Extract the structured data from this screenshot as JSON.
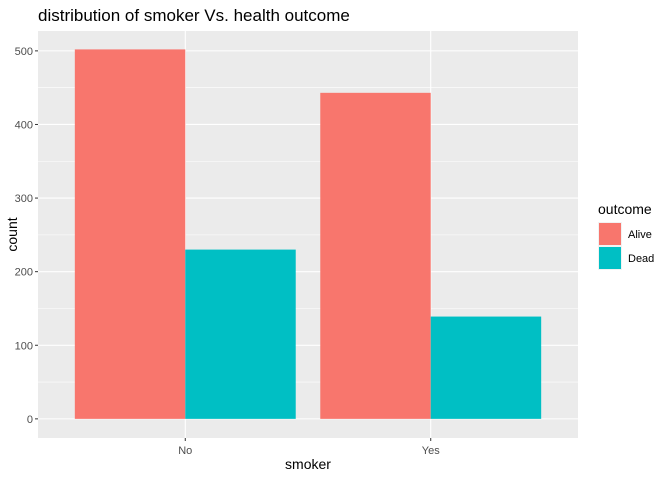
{
  "chart_data": {
    "type": "bar",
    "title": "distribution of smoker Vs. health outcome",
    "xlabel": "smoker",
    "ylabel": "count",
    "categories": [
      "No",
      "Yes"
    ],
    "series": [
      {
        "name": "Alive",
        "values": [
          502,
          443
        ],
        "color": "#F8766D"
      },
      {
        "name": "Dead",
        "values": [
          230,
          139
        ],
        "color": "#00BFC4"
      }
    ],
    "y_ticks": [
      0,
      100,
      200,
      300,
      400,
      500
    ],
    "ylim": [
      0,
      527
    ],
    "grid": true,
    "panel_background": "#EBEBEB",
    "legend": {
      "title": "outcome",
      "placement": "right"
    }
  }
}
